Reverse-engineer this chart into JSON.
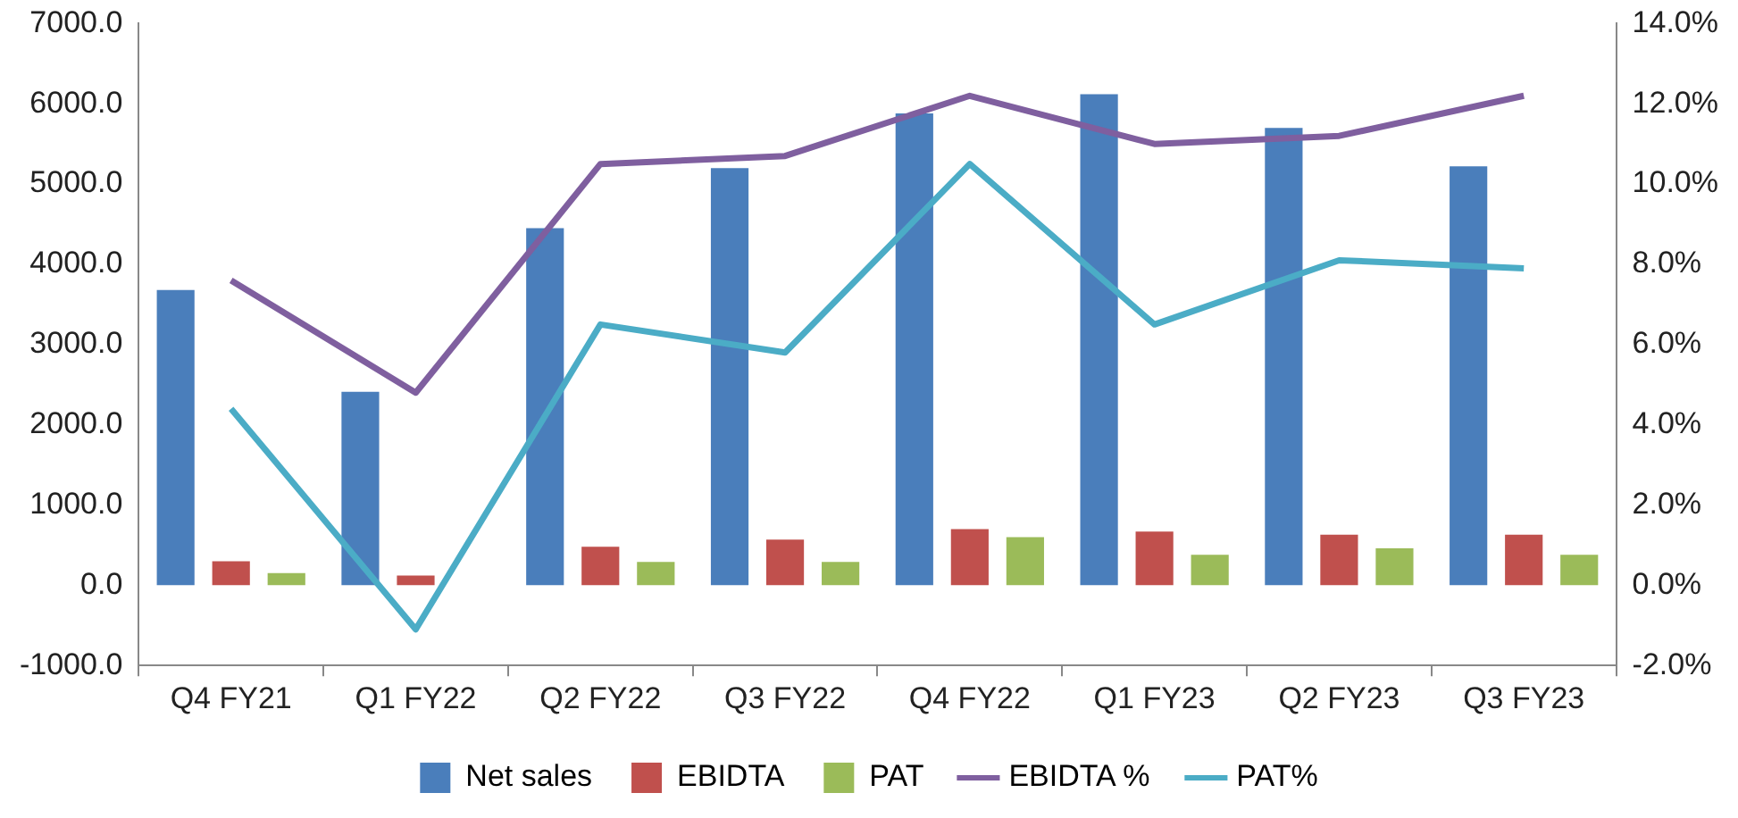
{
  "chart_data": {
    "type": "bar",
    "categories": [
      "Q4 FY21",
      "Q1 FY22",
      "Q2 FY22",
      "Q3 FY22",
      "Q4 FY22",
      "Q1 FY23",
      "Q2 FY23",
      "Q3 FY23"
    ],
    "series": [
      {
        "name": "Net sales",
        "color": "#4a7ebb",
        "values": [
          3680,
          2410,
          4450,
          5200,
          5880,
          6120,
          5700,
          5220
        ]
      },
      {
        "name": "EBIDTA",
        "color": "#c0504d",
        "values": [
          300,
          120,
          480,
          570,
          700,
          670,
          630,
          630
        ]
      },
      {
        "name": "PAT",
        "color": "#9bbb59",
        "values": [
          150,
          0,
          290,
          290,
          600,
          380,
          460,
          380
        ]
      },
      {
        "name": "EBIDTA %",
        "type": "line",
        "axis": "y2",
        "color": "#7f5f9f",
        "values": [
          7.6,
          4.8,
          10.5,
          10.7,
          12.2,
          11.0,
          11.2,
          12.2
        ]
      },
      {
        "name": "PAT%",
        "type": "line",
        "axis": "y2",
        "color": "#4bacc6",
        "values": [
          4.4,
          -1.1,
          6.5,
          5.8,
          10.5,
          6.5,
          8.1,
          7.9
        ]
      }
    ],
    "ylim": [
      -1000,
      7000
    ],
    "yticks": [
      {
        "value": -1000,
        "label": "-1000.0"
      },
      {
        "value": 0,
        "label": "0.0"
      },
      {
        "value": 1000,
        "label": "1000.0"
      },
      {
        "value": 2000,
        "label": "2000.0"
      },
      {
        "value": 3000,
        "label": "3000.0"
      },
      {
        "value": 4000,
        "label": "4000.0"
      },
      {
        "value": 5000,
        "label": "5000.0"
      },
      {
        "value": 6000,
        "label": "6000.0"
      },
      {
        "value": 7000,
        "label": "7000.0"
      }
    ],
    "y2lim": [
      -2,
      14
    ],
    "y2ticks": [
      {
        "value": -2,
        "label": "-2.0%"
      },
      {
        "value": 0,
        "label": "0.0%"
      },
      {
        "value": 2,
        "label": "2.0%"
      },
      {
        "value": 4,
        "label": "4.0%"
      },
      {
        "value": 6,
        "label": "6.0%"
      },
      {
        "value": 8,
        "label": "8.0%"
      },
      {
        "value": 10,
        "label": "10.0%"
      },
      {
        "value": 12,
        "label": "12.0%"
      },
      {
        "value": 14,
        "label": "14.0%"
      }
    ],
    "grid": false,
    "legend": "bottom",
    "marker": "none",
    "line_style": "solid"
  }
}
